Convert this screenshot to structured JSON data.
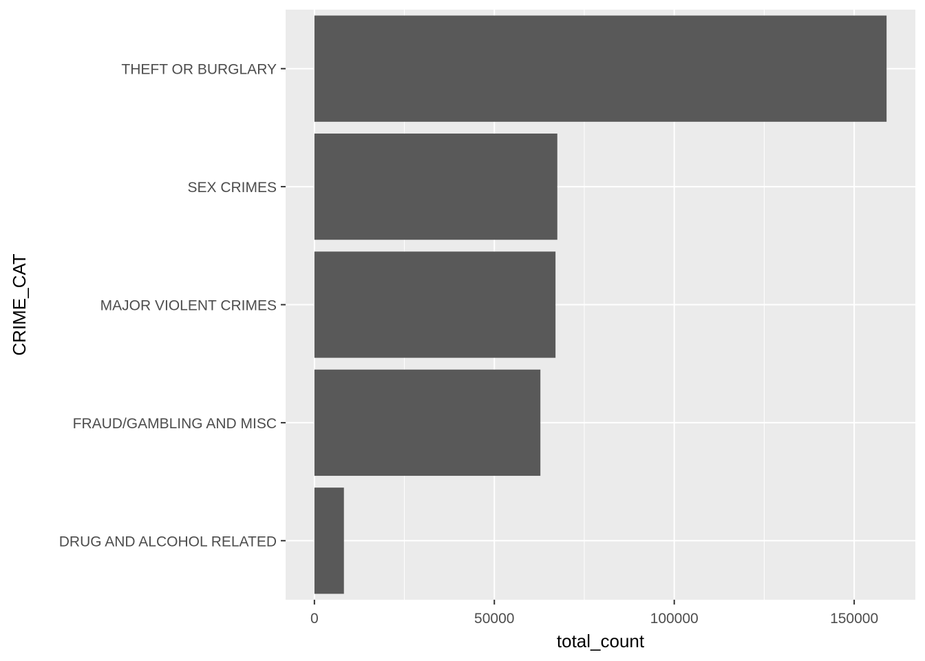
{
  "chart_data": {
    "type": "bar",
    "orientation": "horizontal",
    "categories": [
      "THEFT OR BURGLARY",
      "SEX CRIMES",
      "MAJOR VIOLENT CRIMES",
      "FRAUD/GAMBLING AND MISC",
      "DRUG AND ALCOHOL RELATED"
    ],
    "values": [
      159000,
      67500,
      67000,
      62800,
      8200
    ],
    "xlabel": "total_count",
    "ylabel": "CRIME_CAT",
    "xlim": [
      -8000,
      167000
    ],
    "x_ticks": [
      0,
      50000,
      100000,
      150000
    ],
    "x_tick_labels": [
      "0",
      "50000",
      "100000",
      "150000"
    ],
    "x_minor_ticks": [
      25000,
      75000,
      125000
    ],
    "grid": true,
    "legend": "none",
    "colors": {
      "bar": "#595959",
      "panel": "#EBEBEB",
      "grid": "#FFFFFF",
      "tick": "#333333"
    }
  }
}
